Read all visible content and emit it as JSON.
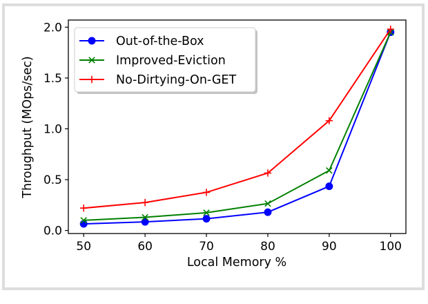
{
  "chart_data": {
    "type": "line",
    "title": "",
    "xlabel": "Local Memory %",
    "ylabel": "Throughput (MOps/sec)",
    "x": [
      50,
      60,
      70,
      80,
      90,
      100
    ],
    "xlim": [
      47.5,
      102.5
    ],
    "ylim": [
      -0.03,
      2.07
    ],
    "xticks": [
      50,
      60,
      70,
      80,
      90,
      100
    ],
    "yticks": [
      "0.0",
      "0.5",
      "1.0",
      "1.5",
      "2.0"
    ],
    "grid": false,
    "legend_position": "top-left",
    "series": [
      {
        "name": "Out-of-the-Box",
        "color": "#0000ff",
        "marker": "circle",
        "values": [
          0.065,
          0.085,
          0.115,
          0.18,
          0.435,
          1.95
        ]
      },
      {
        "name": "Improved-Eviction",
        "color": "#008000",
        "marker": "x",
        "values": [
          0.1,
          0.13,
          0.175,
          0.265,
          0.59,
          1.95
        ]
      },
      {
        "name": "No-Dirtying-On-GET",
        "color": "#ff0000",
        "marker": "plus",
        "values": [
          0.22,
          0.275,
          0.375,
          0.565,
          1.08,
          1.98
        ]
      }
    ]
  }
}
